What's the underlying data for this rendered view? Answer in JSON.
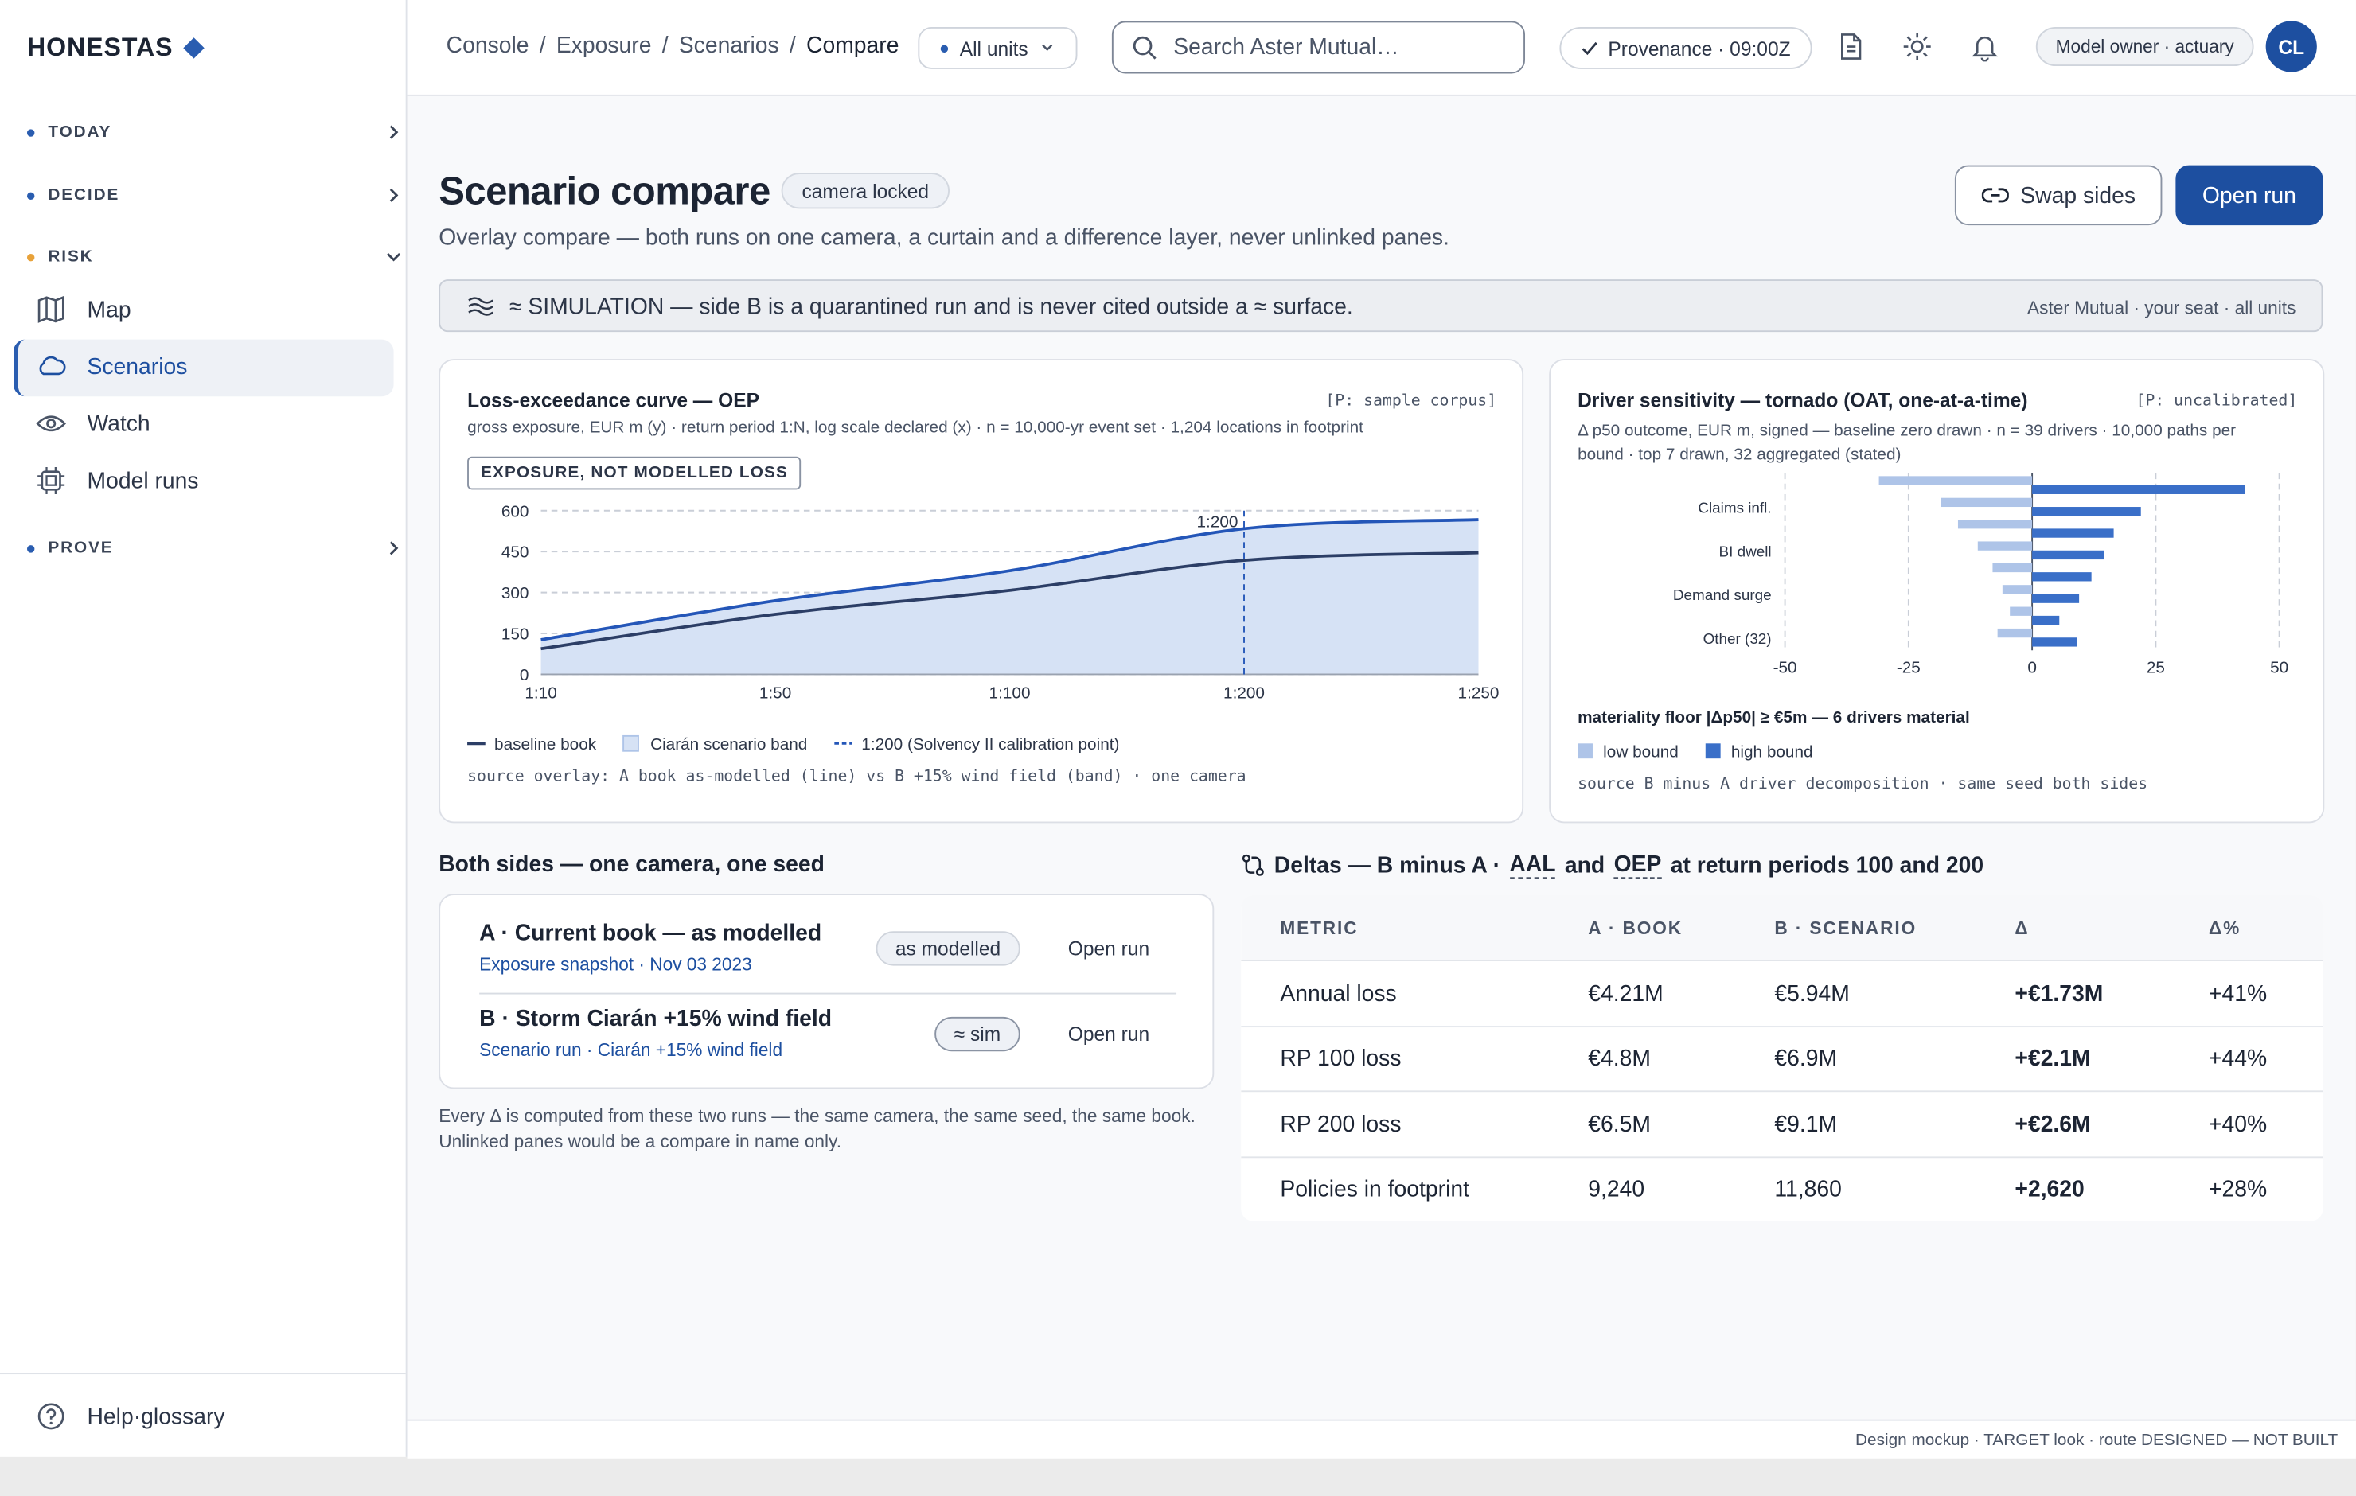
{
  "sidebar": {
    "brand": "HONESTAS",
    "nav": [
      {
        "label": "TODAY"
      },
      {
        "label": "DECIDE"
      },
      {
        "label": "RISK",
        "items": [
          "Map",
          "Scenarios",
          "Watch",
          "Model runs"
        ]
      },
      {
        "label": "PROVE"
      }
    ],
    "help": "Help·glossary"
  },
  "topbar": {
    "breadcrumb": [
      "Console",
      "Exposure",
      "Scenarios",
      "Compare"
    ],
    "separator": "/",
    "units": "All units",
    "search": "Search Aster Mutual…",
    "provenance": "Provenance · 09:00Z",
    "role": "Model owner · actuary",
    "avatar": "CL"
  },
  "header": {
    "title": "Scenario compare",
    "badge": "camera locked",
    "subtitle": "Overlay compare — both runs on one camera, a curtain and a difference layer, never unlinked panes.",
    "actions": [
      "Swap sides",
      "Open run"
    ]
  },
  "banner": {
    "text": "≈ SIMULATION — side B is a quarantined run and is never cited outside a ≈ surface.",
    "scope": "Aster Mutual · your seat · all units"
  },
  "loss_curve": {
    "type": "line",
    "title": "Loss-exceedance curve — OEP",
    "tag": "[P: sample corpus]",
    "subtitle": "gross exposure, EUR m (y) · return period 1:N, log scale declared (x) · n = 10,000-yr event set · 1,204 locations in footprint",
    "badge": "EXPOSURE, NOT MODELLED LOSS",
    "categories": [
      "1:10",
      "1:50",
      "1:100",
      "1:200",
      "1:250"
    ],
    "series": [
      {
        "name": "baseline book",
        "color": "#2c3e66",
        "values": [
          94,
          220,
          308,
          418,
          446
        ]
      },
      {
        "name": "Ciarán scenario band",
        "color": "#2456b8",
        "fill": "#d6e2f5",
        "values": [
          127,
          270,
          380,
          534,
          567
        ]
      }
    ],
    "ylim": [
      0,
      600
    ],
    "yticks": [
      0,
      150,
      300,
      450,
      600
    ],
    "grid": true,
    "marker": {
      "at": "1:200",
      "name": "1:200 (Solvency II calibration point)",
      "color": "#2456b8"
    },
    "source": "source overlay: A book as-modelled (line) vs B +15% wind field (band) · one camera"
  },
  "tornado": {
    "type": "bar",
    "orientation": "horizontal",
    "title": "Driver sensitivity — tornado (OAT, one-at-a-time)",
    "tag": "[P: uncalibrated]",
    "subtitle": "Δ p50 outcome, EUR m, signed — baseline zero drawn · n = 39 drivers · 10,000 paths per bound · top 7 drawn, 32 aggregated (stated)",
    "categories": [
      null,
      "Claims infl.",
      null,
      "BI dwell",
      null,
      "Demand surge",
      null,
      "Other (32)"
    ],
    "series": [
      {
        "name": "low bound",
        "color": "#aec4e8",
        "values": [
          -31,
          -18.5,
          -15,
          -11,
          -8,
          -6,
          -4.5,
          -7
        ]
      },
      {
        "name": "high bound",
        "color": "#3a6fc8",
        "values": [
          43,
          22,
          16.5,
          14.5,
          12,
          9.5,
          5.5,
          9
        ]
      }
    ],
    "xlim": [
      -50,
      50
    ],
    "xticks": [
      -50,
      -25,
      0,
      25,
      50
    ],
    "grid": true,
    "note": "materiality floor |Δp50| ≥ €5m — 6 drivers material",
    "source": "source B minus A driver decomposition · same seed both sides"
  },
  "sides": {
    "heading": "Both sides — one camera, one seed",
    "runs": [
      {
        "title": "A · Current book — as modelled",
        "subtitle": "Exposure snapshot · Nov 03 2023",
        "badge": "as modelled",
        "action": "Open run"
      },
      {
        "title": "B · Storm Ciarán +15% wind field",
        "subtitle": "Scenario run · Ciarán +15% wind field",
        "badge": "≈ sim",
        "action": "Open run"
      }
    ],
    "note": "Every Δ is computed from these two runs — the same camera, the same seed, the same book. Unlinked panes would be a compare in name only."
  },
  "deltas": {
    "heading": {
      "lead": "Deltas — B minus A ·",
      "terms": [
        "AAL",
        "OEP"
      ],
      "joiner": "and",
      "tail": "at return periods 100 and 200"
    },
    "columns": [
      "METRIC",
      "A · BOOK",
      "B · SCENARIO",
      "Δ",
      "Δ%"
    ],
    "rows": [
      [
        "Annual loss",
        "€4.21M",
        "€5.94M",
        "+€1.73M",
        "+41%"
      ],
      [
        "RP 100 loss",
        "€4.8M",
        "€6.9M",
        "+€2.1M",
        "+44%"
      ],
      [
        "RP 200 loss",
        "€6.5M",
        "€9.1M",
        "+€2.6M",
        "+40%"
      ],
      [
        "Policies in footprint",
        "9,240",
        "11,860",
        "+2,620",
        "+28%"
      ]
    ]
  },
  "footer": "Design mockup · TARGET look · route DESIGNED — NOT BUILT"
}
